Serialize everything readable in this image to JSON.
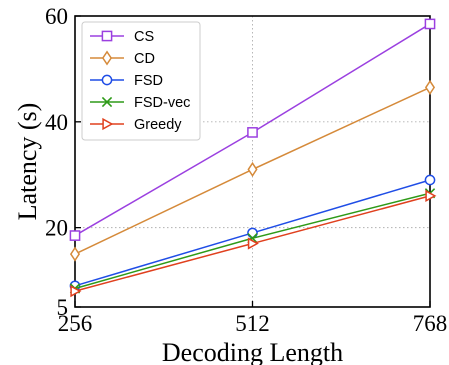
{
  "chart_data": {
    "type": "line",
    "xlabel": "Decoding Length",
    "ylabel": "Latency (s)",
    "x": [
      256,
      512,
      768
    ],
    "x_ticks": [
      "256",
      "512",
      "768"
    ],
    "y_ticks": [
      "5",
      "20",
      "40",
      "60"
    ],
    "xlim": [
      256,
      768
    ],
    "ylim": [
      5,
      60
    ],
    "grid": "dotted",
    "legend": "top-left",
    "series": [
      {
        "name": "CS",
        "values": [
          18.5,
          38.0,
          58.5
        ],
        "color": "#9b40e0",
        "marker": "square"
      },
      {
        "name": "CD",
        "values": [
          15.0,
          31.0,
          46.5
        ],
        "color": "#d58a3a",
        "marker": "diamond"
      },
      {
        "name": "FSD",
        "values": [
          9.0,
          19.0,
          29.0
        ],
        "color": "#1f4de6",
        "marker": "circle"
      },
      {
        "name": "FSD-vec",
        "values": [
          8.5,
          18.0,
          26.5
        ],
        "color": "#2e9a18",
        "marker": "x"
      },
      {
        "name": "Greedy",
        "values": [
          8.0,
          17.0,
          26.0
        ],
        "color": "#e0401e",
        "marker": "triangle-right"
      }
    ]
  }
}
